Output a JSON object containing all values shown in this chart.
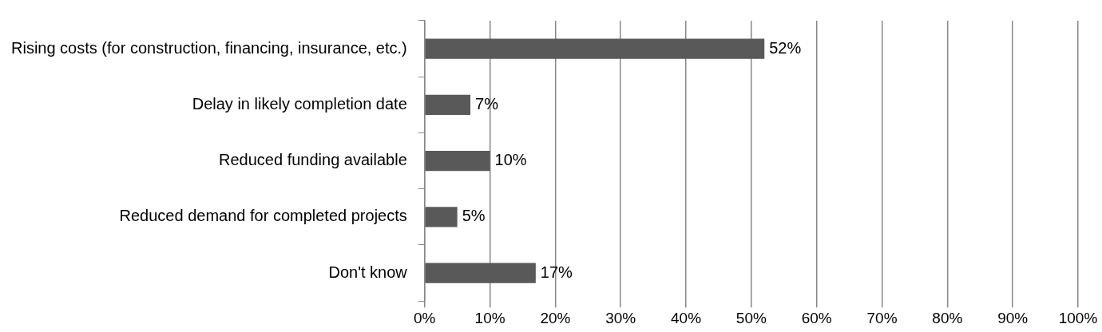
{
  "chart_data": {
    "type": "bar",
    "orientation": "horizontal",
    "categories": [
      "Rising costs (for construction, financing, insurance, etc.)",
      "Delay in likely completion date",
      "Reduced funding available",
      "Reduced demand for completed projects",
      "Don't know"
    ],
    "values": [
      52,
      7,
      10,
      5,
      17
    ],
    "value_labels": [
      "52%",
      "7%",
      "10%",
      "5%",
      "17%"
    ],
    "color": "#595959",
    "xlim": [
      0,
      100
    ],
    "xticks": [
      {
        "value": 0,
        "label": "0%"
      },
      {
        "value": 10,
        "label": "10%"
      },
      {
        "value": 20,
        "label": "20%"
      },
      {
        "value": 30,
        "label": "30%"
      },
      {
        "value": 40,
        "label": "40%"
      },
      {
        "value": 50,
        "label": "50%"
      },
      {
        "value": 60,
        "label": "60%"
      },
      {
        "value": 70,
        "label": "70%"
      },
      {
        "value": 80,
        "label": "80%"
      },
      {
        "value": 90,
        "label": "90%"
      },
      {
        "value": 100,
        "label": "100%"
      }
    ],
    "grid": "x",
    "legend": false
  }
}
